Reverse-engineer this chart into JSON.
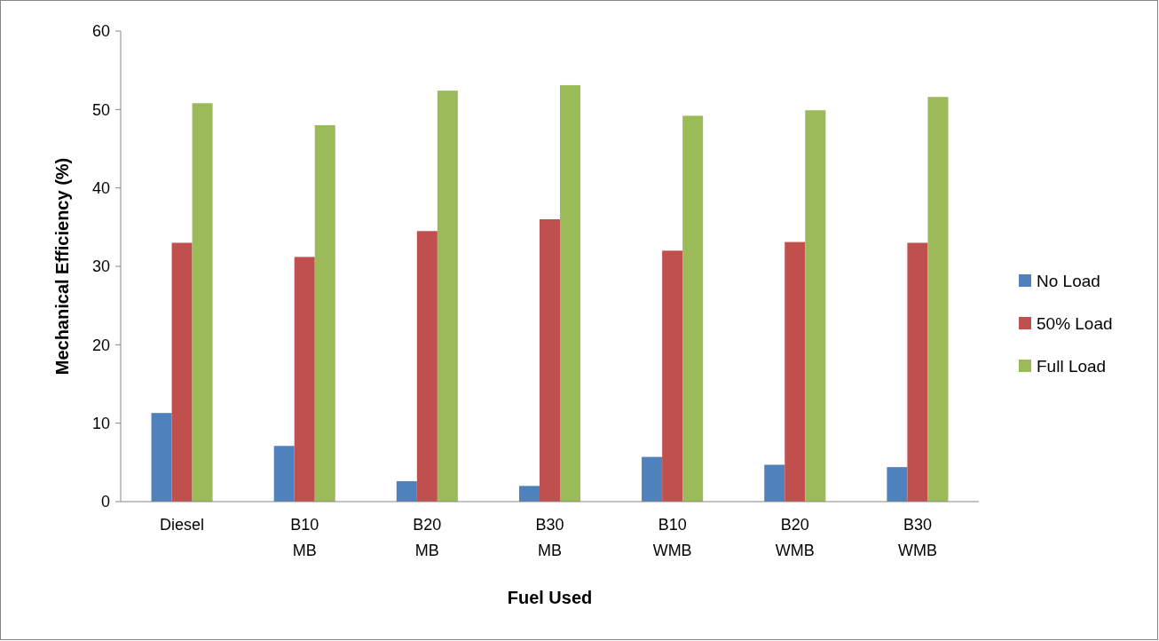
{
  "chart_data": {
    "type": "bar",
    "xlabel": "Fuel Used",
    "ylabel": "Mechanical Efficiency (%)",
    "categories": [
      "Diesel",
      "B10\nMB",
      "B20\nMB",
      "B30\nMB",
      "B10\nWMB",
      "B20\nWMB",
      "B30\nWMB"
    ],
    "series": [
      {
        "name": "No Load",
        "color": "#4f81bd",
        "values": [
          11.3,
          7.1,
          2.6,
          2.0,
          5.7,
          4.7,
          4.4
        ]
      },
      {
        "name": "50% Load",
        "color": "#c0504d",
        "values": [
          33.0,
          31.2,
          34.5,
          36.0,
          32.0,
          33.1,
          33.0
        ]
      },
      {
        "name": "Full Load",
        "color": "#9bbb59",
        "values": [
          50.8,
          48.0,
          52.4,
          53.1,
          49.2,
          49.9,
          51.6
        ]
      }
    ],
    "ylim": [
      0,
      60
    ],
    "yticks": [
      0,
      10,
      20,
      30,
      40,
      50,
      60
    ],
    "grid": false,
    "legend": "right"
  }
}
